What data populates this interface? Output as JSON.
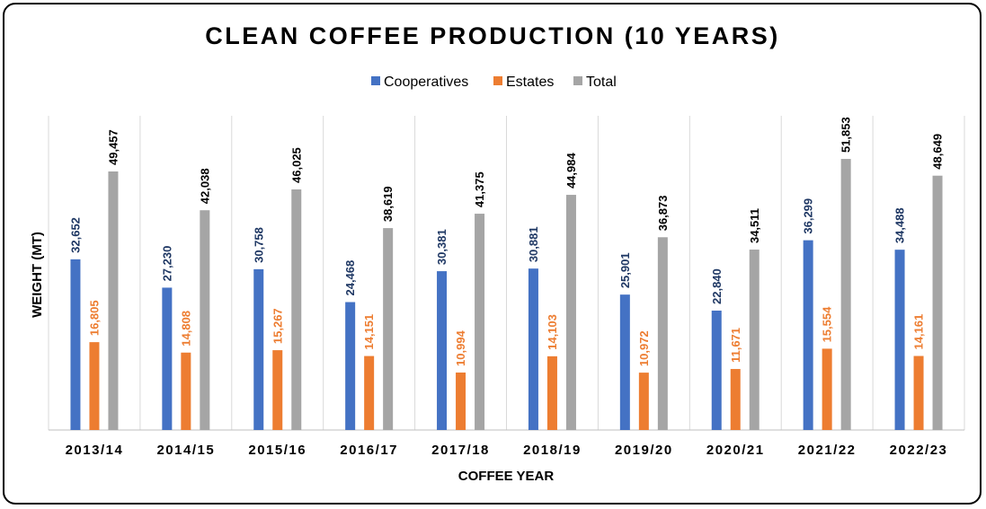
{
  "chart_data": {
    "type": "bar",
    "title": "CLEAN COFFEE PRODUCTION (10 YEARS)",
    "xlabel": "COFFEE YEAR",
    "ylabel": "WEIGHT (MT)",
    "ylim": [
      0,
      60000
    ],
    "categories": [
      "2013/14",
      "2014/15",
      "2015/16",
      "2016/17",
      "2017/18",
      "2018/19",
      "2019/20",
      "2020/21",
      "2021/22",
      "2022/23"
    ],
    "series": [
      {
        "name": "Cooperatives",
        "color": "#4472C4",
        "label_color": "#1F3864",
        "values": [
          32652,
          27230,
          30758,
          24468,
          30381,
          30881,
          25901,
          22840,
          36299,
          34488
        ],
        "labels": [
          "32,652",
          "27,230",
          "30,758",
          "24,468",
          "30,381",
          "30,881",
          "25,901",
          "22,840",
          "36,299",
          "34,488"
        ]
      },
      {
        "name": "Estates",
        "color": "#ED7D31",
        "label_color": "#ED7D31",
        "values": [
          16805,
          14808,
          15267,
          14151,
          10994,
          14103,
          10972,
          11671,
          15554,
          14161
        ],
        "labels": [
          "16,805",
          "14,808",
          "15,267",
          "14,151",
          "10,994",
          "14,103",
          "10,972",
          "11,671",
          "15,554",
          "14,161"
        ]
      },
      {
        "name": "Total",
        "color": "#A5A5A5",
        "label_color": "#000000",
        "values": [
          49457,
          42038,
          46025,
          38619,
          41375,
          44984,
          36873,
          34511,
          51853,
          48649
        ],
        "labels": [
          "49,457",
          "42,038",
          "46,025",
          "38,619",
          "41,375",
          "44,984",
          "36,873",
          "34,511",
          "51,853",
          "48,649"
        ]
      }
    ],
    "legend": "top-center",
    "grid": "vertical category separators"
  }
}
